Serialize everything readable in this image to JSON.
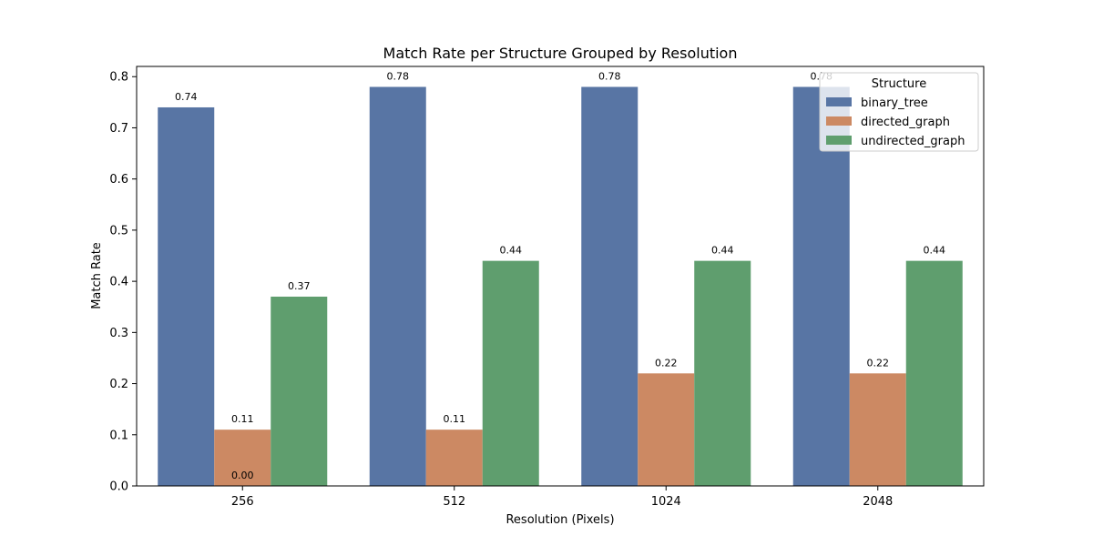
{
  "chart_data": {
    "type": "bar",
    "title": "Match Rate per Structure Grouped by Resolution",
    "xlabel": "Resolution (Pixels)",
    "ylabel": "Match Rate",
    "categories": [
      "256",
      "512",
      "1024",
      "2048"
    ],
    "ylim": [
      0,
      0.82
    ],
    "yticks": [
      0.0,
      0.1,
      0.2,
      0.3,
      0.4,
      0.5,
      0.6,
      0.7,
      0.8
    ],
    "grid": false,
    "legend": {
      "title": "Structure",
      "placement": "top-right"
    },
    "series": [
      {
        "name": "binary_tree",
        "color": "#5875a4",
        "values": [
          0.74,
          0.78,
          0.78,
          0.78
        ],
        "labels": [
          "0.74",
          "0.78",
          "0.78",
          "0.78"
        ]
      },
      {
        "name": "directed_graph",
        "color": "#cc8963",
        "values": [
          0.11,
          0.11,
          0.22,
          0.22
        ],
        "labels": [
          "0.11",
          "0.11",
          "0.22",
          "0.22"
        ]
      },
      {
        "name": "undirected_graph",
        "color": "#5f9e6e",
        "values": [
          0.37,
          0.44,
          0.44,
          0.44
        ],
        "labels": [
          "0.37",
          "0.44",
          "0.44",
          "0.44"
        ]
      }
    ],
    "annotations": [
      {
        "text": "0.00",
        "category": "256",
        "y": 0.0
      }
    ]
  }
}
